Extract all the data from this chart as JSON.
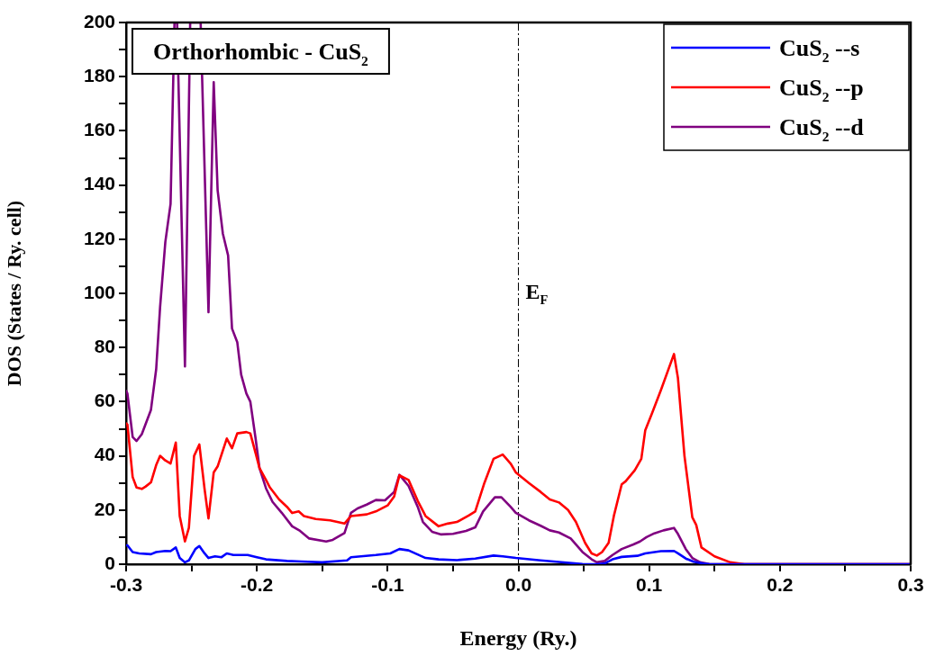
{
  "chart_data": {
    "type": "line",
    "title": "Orthorhombic - CuS$_{2}$",
    "xlabel": "Energy (Ry.)",
    "ylabel": "DOS (States / Ry. cell)",
    "xlim": [
      -0.3,
      0.3
    ],
    "ylim": [
      0,
      200
    ],
    "xticks": [
      -0.3,
      {
        "value": -0.25,
        "label": null
      },
      -0.2,
      {
        "value": -0.15,
        "label": null
      },
      -0.1,
      {
        "value": -0.05,
        "label": null
      },
      {
        "value": 0,
        "label": "0.0"
      },
      {
        "value": 0.05,
        "label": null
      },
      0.1,
      {
        "value": 0.15,
        "label": null
      },
      0.2,
      {
        "value": 0.25,
        "label": null
      },
      0.3
    ],
    "yticks": [
      0,
      {
        "value": 10,
        "label": null
      },
      20,
      {
        "value": 30,
        "label": null
      },
      40,
      {
        "value": 50,
        "label": null
      },
      60,
      {
        "value": 70,
        "label": null
      },
      80,
      {
        "value": 90,
        "label": null
      },
      100,
      {
        "value": 110,
        "label": null
      },
      120,
      {
        "value": 130,
        "label": null
      },
      140,
      {
        "value": 150,
        "label": null
      },
      160,
      {
        "value": 170,
        "label": null
      },
      180,
      {
        "value": 190,
        "label": null
      },
      200
    ],
    "grid": false,
    "legend": "top right",
    "marker": "none",
    "line_style": "solid",
    "ref_lines": [
      {
        "axis": "x",
        "value": 0,
        "label": "E$_{F}$",
        "color": "#000000",
        "line_style": "dashed"
      }
    ],
    "series": [
      {
        "name": "CuS$_{2}$ --s",
        "color": "#0000ff",
        "x": [
          -0.3,
          -0.299,
          -0.295,
          -0.29,
          -0.281,
          -0.277,
          -0.27,
          -0.266,
          -0.262,
          -0.259,
          -0.255,
          -0.252,
          -0.247,
          -0.244,
          -0.24,
          -0.237,
          -0.232,
          -0.227,
          -0.223,
          -0.218,
          -0.207,
          -0.2,
          -0.193,
          -0.177,
          -0.166,
          -0.15,
          -0.131,
          -0.128,
          -0.109,
          -0.098,
          -0.091,
          -0.084,
          -0.071,
          -0.061,
          -0.047,
          -0.033,
          -0.019,
          -0.012,
          -0.002,
          0.017,
          0.049,
          0.06,
          0.066,
          0.072,
          0.079,
          0.091,
          0.097,
          0.109,
          0.119,
          0.122,
          0.128,
          0.134,
          0.141,
          0.146,
          0.3
        ],
        "values": [
          7,
          7,
          4.5,
          4,
          3.7,
          4.5,
          4.9,
          4.8,
          6.2,
          2.3,
          0.7,
          1.4,
          5.6,
          6.7,
          4,
          2.3,
          2.9,
          2.6,
          4,
          3.4,
          3.4,
          2.6,
          1.8,
          1.2,
          1,
          0.7,
          1.4,
          2.6,
          3.4,
          4,
          5.6,
          5.1,
          2.3,
          1.8,
          1.5,
          2.1,
          3.2,
          2.9,
          2.3,
          1.4,
          0.1,
          0,
          0.3,
          1.8,
          2.7,
          3.1,
          4,
          4.8,
          4.9,
          4,
          2.1,
          0.9,
          0.3,
          0,
          0
        ]
      },
      {
        "name": "CuS$_{2}$ --p",
        "color": "#ff0000",
        "x": [
          -0.3,
          -0.299,
          -0.295,
          -0.292,
          -0.288,
          -0.285,
          -0.281,
          -0.277,
          -0.274,
          -0.27,
          -0.266,
          -0.262,
          -0.259,
          -0.255,
          -0.252,
          -0.248,
          -0.244,
          -0.24,
          -0.237,
          -0.233,
          -0.23,
          -0.223,
          -0.219,
          -0.215,
          -0.208,
          -0.205,
          -0.201,
          -0.198,
          -0.193,
          -0.19,
          -0.183,
          -0.177,
          -0.173,
          -0.168,
          -0.164,
          -0.155,
          -0.144,
          -0.133,
          -0.128,
          -0.116,
          -0.109,
          -0.1,
          -0.095,
          -0.091,
          -0.084,
          -0.077,
          -0.071,
          -0.061,
          -0.054,
          -0.047,
          -0.038,
          -0.033,
          -0.026,
          -0.019,
          -0.012,
          -0.006,
          -0.002,
          0.008,
          0.017,
          0.024,
          0.031,
          0.038,
          0.044,
          0.051,
          0.056,
          0.06,
          0.064,
          0.069,
          0.073,
          0.079,
          0.082,
          0.089,
          0.094,
          0.097,
          0.102,
          0.109,
          0.119,
          0.122,
          0.127,
          0.133,
          0.136,
          0.14,
          0.15,
          0.162,
          0.173,
          0.3
        ],
        "values": [
          52,
          51.6,
          32.2,
          28.3,
          27.8,
          28.7,
          30.2,
          36.6,
          40,
          38.3,
          37.2,
          44.9,
          17.8,
          8.4,
          13.4,
          40,
          44.2,
          27.8,
          16.9,
          33.9,
          36.1,
          46.4,
          42.8,
          48.3,
          48.8,
          48.3,
          41.1,
          35.5,
          31.1,
          28.3,
          23.9,
          21.2,
          18.9,
          19.5,
          17.8,
          16.7,
          16.2,
          15,
          17.8,
          18.4,
          19.5,
          21.7,
          25,
          32.8,
          31.1,
          23.4,
          17.8,
          14,
          15,
          15.6,
          18,
          19.5,
          30,
          38.9,
          40.5,
          37.2,
          33.9,
          30,
          26.7,
          23.9,
          22.8,
          20,
          15.6,
          7.9,
          4,
          3.2,
          4.5,
          7.9,
          17.8,
          29.5,
          30.6,
          34.7,
          38.9,
          49.4,
          55.5,
          64.3,
          77.6,
          68.8,
          40,
          17.3,
          14.5,
          6.2,
          2.9,
          0.7,
          0,
          0
        ]
      },
      {
        "name": "CuS$_{2}$ --d",
        "color": "#800080",
        "x": [
          -0.3,
          -0.299,
          -0.295,
          -0.292,
          -0.288,
          -0.281,
          -0.277,
          -0.274,
          -0.27,
          -0.266,
          -0.263,
          -0.261,
          -0.255,
          -0.251,
          -0.243,
          -0.237,
          -0.233,
          -0.23,
          -0.226,
          -0.222,
          -0.219,
          -0.215,
          -0.212,
          -0.208,
          -0.205,
          -0.201,
          -0.198,
          -0.193,
          -0.188,
          -0.181,
          -0.173,
          -0.167,
          -0.16,
          -0.147,
          -0.142,
          -0.133,
          -0.128,
          -0.123,
          -0.116,
          -0.109,
          -0.102,
          -0.095,
          -0.091,
          -0.084,
          -0.077,
          -0.073,
          -0.066,
          -0.059,
          -0.05,
          -0.04,
          -0.033,
          -0.027,
          -0.018,
          -0.013,
          -0.006,
          -0.002,
          0.008,
          0.017,
          0.024,
          0.031,
          0.04,
          0.049,
          0.056,
          0.06,
          0.066,
          0.072,
          0.079,
          0.088,
          0.093,
          0.098,
          0.104,
          0.111,
          0.119,
          0.122,
          0.128,
          0.133,
          0.139,
          0.146,
          0.16,
          0.3
        ],
        "values": [
          64,
          63,
          47,
          45.5,
          48,
          57,
          72,
          95,
          119,
          133,
          200,
          200,
          73,
          200,
          200,
          93,
          178,
          138,
          122,
          114,
          87,
          82,
          70,
          63,
          60,
          46.5,
          35.5,
          28,
          23,
          19,
          14,
          12.3,
          9.5,
          8.4,
          9,
          11.5,
          19,
          20.6,
          22,
          23.7,
          23.6,
          26.7,
          33,
          28.9,
          21.2,
          15.6,
          12,
          11,
          11.2,
          12.3,
          13.6,
          19.5,
          24.7,
          24.7,
          21.2,
          19,
          16.2,
          14.2,
          12.5,
          11.7,
          9.5,
          4.5,
          1.8,
          0.7,
          1.2,
          3.4,
          5.6,
          7.3,
          8.4,
          10,
          11.4,
          12.5,
          13.4,
          11.2,
          5.6,
          2.3,
          0.7,
          0.1,
          0,
          0
        ]
      }
    ]
  }
}
